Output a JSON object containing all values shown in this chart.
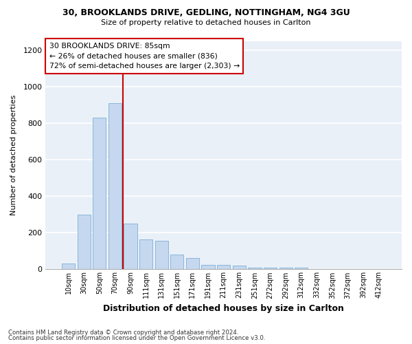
{
  "title1": "30, BROOKLANDS DRIVE, GEDLING, NOTTINGHAM, NG4 3GU",
  "title2": "Size of property relative to detached houses in Carlton",
  "xlabel": "Distribution of detached houses by size in Carlton",
  "ylabel": "Number of detached properties",
  "bar_labels": [
    "10sqm",
    "30sqm",
    "50sqm",
    "70sqm",
    "90sqm",
    "111sqm",
    "131sqm",
    "151sqm",
    "171sqm",
    "191sqm",
    "211sqm",
    "231sqm",
    "251sqm",
    "272sqm",
    "292sqm",
    "312sqm",
    "332sqm",
    "352sqm",
    "372sqm",
    "392sqm",
    "412sqm"
  ],
  "bar_values": [
    30,
    300,
    830,
    910,
    250,
    165,
    155,
    80,
    60,
    25,
    25,
    20,
    10,
    10,
    8,
    8,
    0,
    0,
    0,
    0,
    0
  ],
  "bar_color": "#c5d8ef",
  "bar_edge_color": "#7bafd4",
  "annotation_line1": "30 BROOKLANDS DRIVE: 85sqm",
  "annotation_line2": "← 26% of detached houses are smaller (836)",
  "annotation_line3": "72% of semi-detached houses are larger (2,303) →",
  "annotation_box_facecolor": "#ffffff",
  "annotation_box_edgecolor": "#cc0000",
  "vline_color": "#cc0000",
  "vline_x": 4.0,
  "ylim": [
    0,
    1250
  ],
  "yticks": [
    0,
    200,
    400,
    600,
    800,
    1000,
    1200
  ],
  "footnote1": "Contains HM Land Registry data © Crown copyright and database right 2024.",
  "footnote2": "Contains public sector information licensed under the Open Government Licence v3.0.",
  "bg_color": "#ffffff",
  "plot_bg_color": "#eaf0f8"
}
